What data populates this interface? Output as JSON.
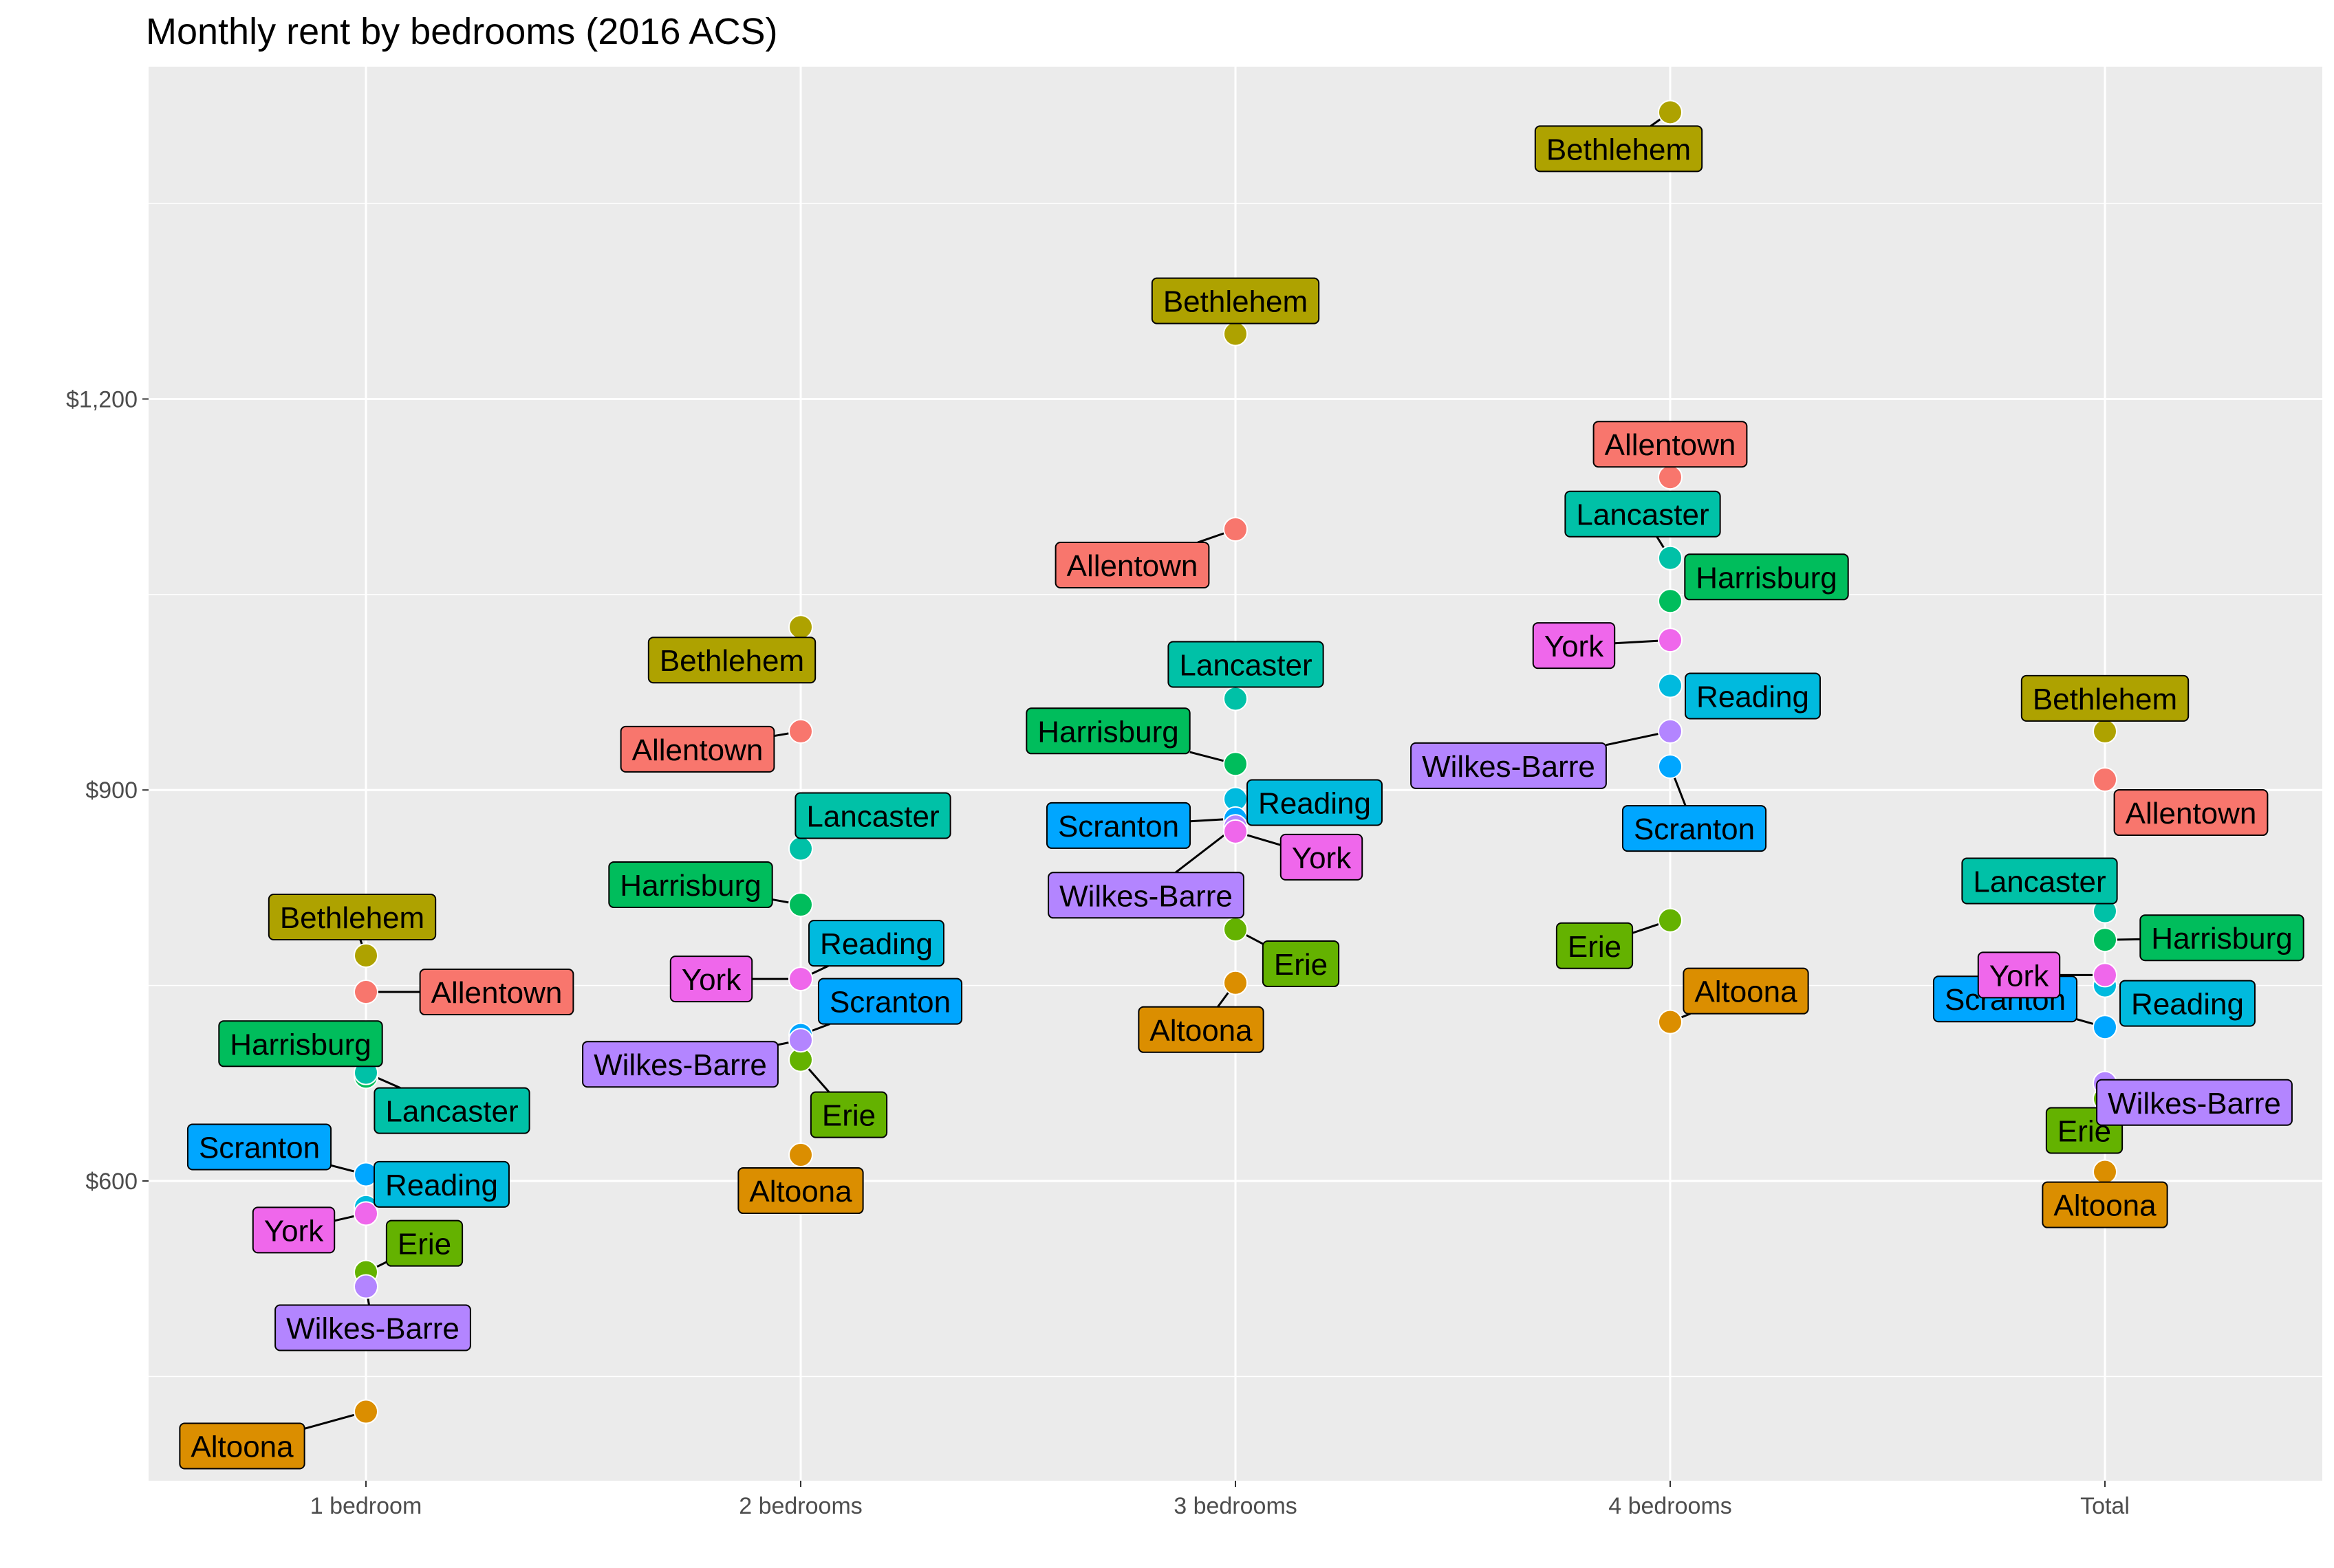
{
  "chart_data": {
    "type": "scatter",
    "title": "Monthly rent by bedrooms (2016 ACS)",
    "xlabel": "",
    "ylabel": "",
    "categories": [
      "1 bedroom",
      "2 bedrooms",
      "3 bedrooms",
      "4 bedrooms",
      "Total"
    ],
    "y_ticks": [
      {
        "value": 600,
        "label": "$600"
      },
      {
        "value": 900,
        "label": "$900"
      },
      {
        "value": 1200,
        "label": "$1,200"
      }
    ],
    "ylim": [
      370,
      1455
    ],
    "grid": true,
    "legend": "none",
    "series": [
      {
        "name": "Allentown",
        "color": "#F8766D",
        "values": [
          745,
          945,
          1100,
          1140,
          908
        ]
      },
      {
        "name": "Altoona",
        "color": "#DB8E00",
        "values": [
          423,
          620,
          752,
          722,
          607
        ]
      },
      {
        "name": "Bethlehem",
        "color": "#AEA200",
        "values": [
          773,
          1025,
          1250,
          1420,
          945
        ]
      },
      {
        "name": "Erie",
        "color": "#64B200",
        "values": [
          530,
          693,
          793,
          800,
          663
        ]
      },
      {
        "name": "Harrisburg",
        "color": "#00BD5C",
        "values": [
          680,
          812,
          920,
          1045,
          785
        ]
      },
      {
        "name": "Lancaster",
        "color": "#00C1A7",
        "values": [
          683,
          855,
          970,
          1078,
          807
        ]
      },
      {
        "name": "Reading",
        "color": "#00BADE",
        "values": [
          580,
          755,
          893,
          980,
          750
        ]
      },
      {
        "name": "Scranton",
        "color": "#00A6FF",
        "values": [
          605,
          712,
          878,
          918,
          718
        ]
      },
      {
        "name": "Wilkes-Barre",
        "color": "#B385FF",
        "values": [
          519,
          708,
          872,
          945,
          675
        ]
      },
      {
        "name": "York",
        "color": "#EF67EB",
        "values": [
          575,
          755,
          868,
          1015,
          758
        ]
      }
    ]
  }
}
